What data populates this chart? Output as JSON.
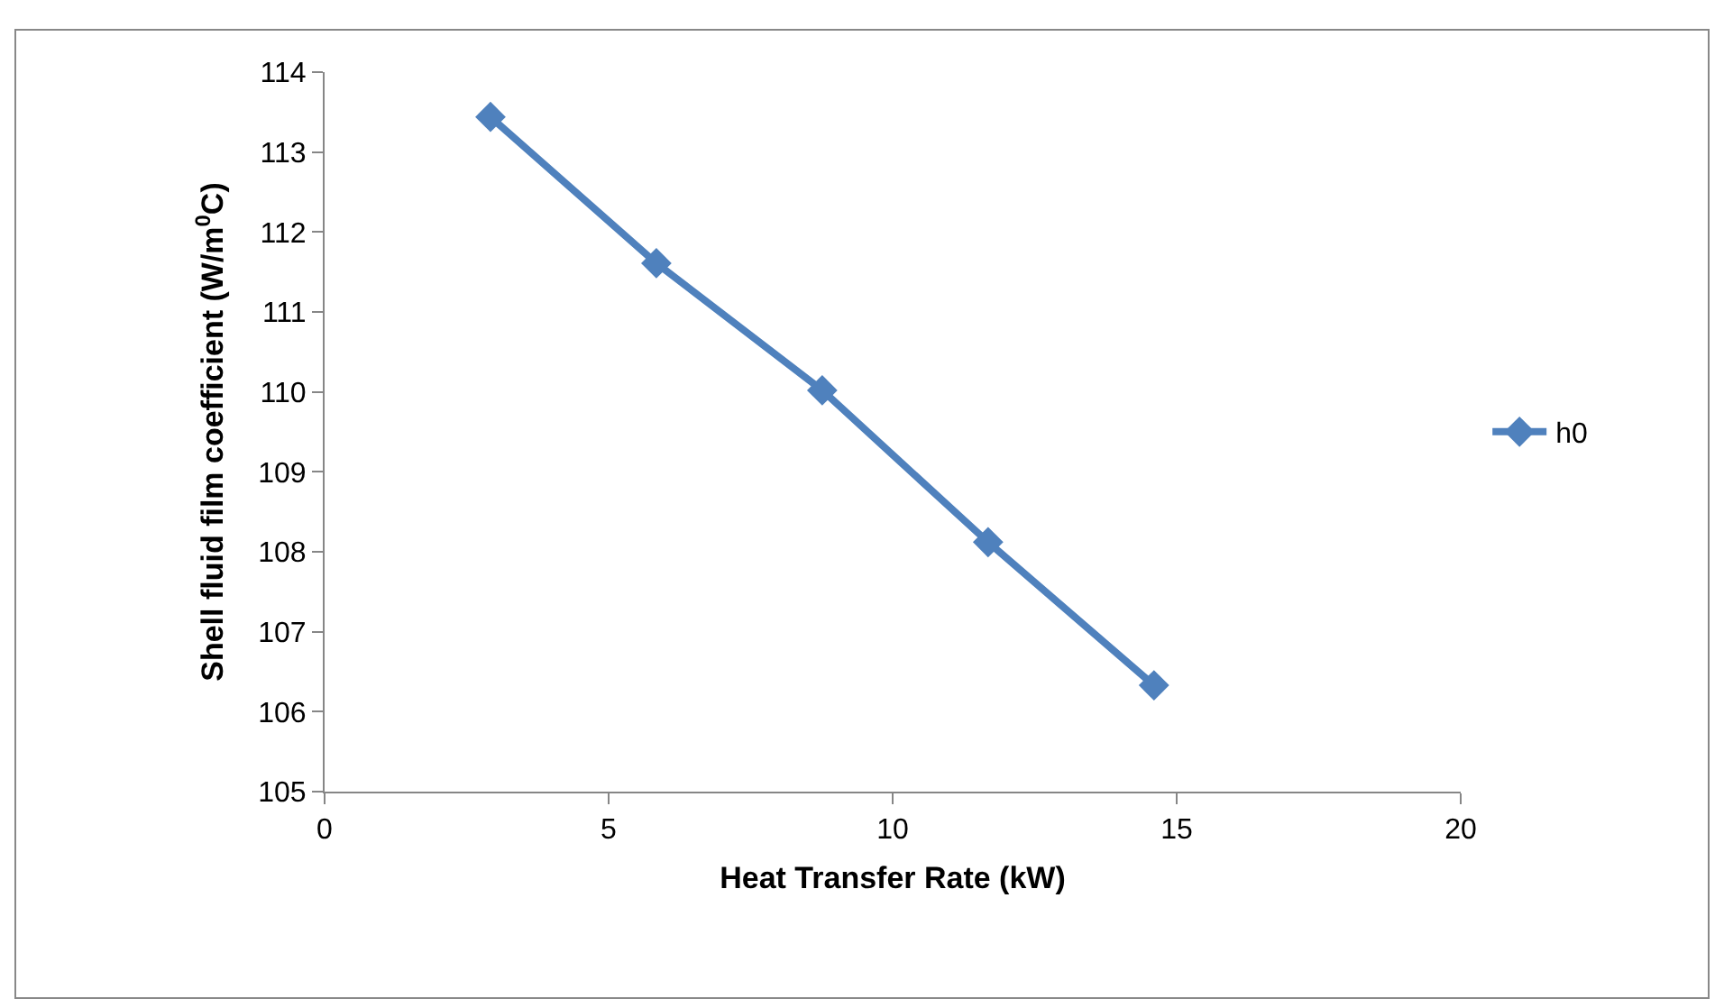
{
  "chart_data": {
    "type": "line",
    "xlabel": "Heat Transfer Rate (kW)",
    "ylabel": "Shell fluid film coefficient (W/m$^{0}$C)",
    "x": [
      2.92,
      5.84,
      8.76,
      11.68,
      14.6
    ],
    "series": [
      {
        "name": "h0",
        "color": "#4f81bd",
        "values": [
          113.44,
          111.61,
          110.02,
          108.12,
          106.33
        ]
      }
    ],
    "xlim": [
      0,
      20
    ],
    "xticks": [
      0,
      5,
      10,
      15,
      20
    ],
    "ylim": [
      105,
      114
    ],
    "yticks": [
      105,
      106,
      107,
      108,
      109,
      110,
      111,
      112,
      113,
      114
    ],
    "grid": false,
    "legend": "right",
    "marker": "diamond",
    "line_style": "solid"
  }
}
